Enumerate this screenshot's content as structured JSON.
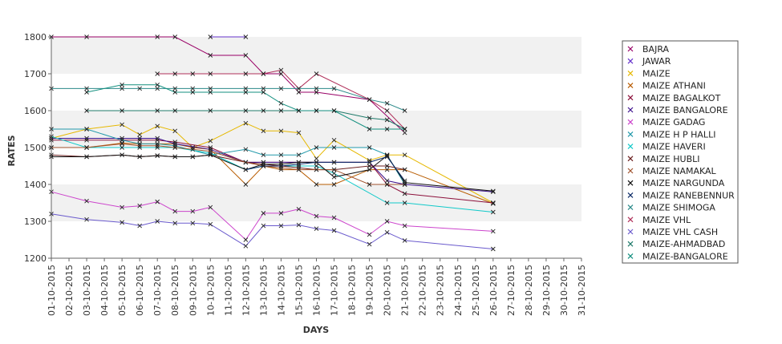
{
  "chart_data": {
    "type": "line",
    "title": "",
    "xlabel": "DAYS",
    "ylabel": "RATES",
    "ylim": [
      1200,
      1800
    ],
    "yticks": [
      1200,
      1300,
      1400,
      1500,
      1600,
      1700,
      1800
    ],
    "grid": "alternating horizontal bands",
    "legend_position": "right",
    "x": [
      "01-10-2015",
      "02-10-2015",
      "03-10-2015",
      "04-10-2015",
      "05-10-2015",
      "06-10-2015",
      "07-10-2015",
      "08-10-2015",
      "09-10-2015",
      "10-10-2015",
      "11-10-2015",
      "12-10-2015",
      "13-10-2015",
      "14-10-2015",
      "15-10-2015",
      "16-10-2015",
      "17-10-2015",
      "18-10-2015",
      "19-10-2015",
      "20-10-2015",
      "21-10-2015",
      "22-10-2015",
      "23-10-2015",
      "24-10-2015",
      "25-10-2015",
      "26-10-2015",
      "27-10-2015",
      "28-10-2015",
      "29-10-2015",
      "30-10-2015",
      "31-10-2015"
    ],
    "series": [
      {
        "name": "BAJRA",
        "color": "#990066",
        "points": [
          [
            1,
            1800
          ],
          [
            3,
            1800
          ],
          [
            7,
            1800
          ],
          [
            8,
            1800
          ],
          [
            10,
            1750
          ],
          [
            12,
            1750
          ],
          [
            13,
            1700
          ],
          [
            14,
            1700
          ],
          [
            15,
            1650
          ],
          [
            16,
            1650
          ],
          [
            19,
            1630
          ],
          [
            21,
            1540
          ]
        ]
      },
      {
        "name": "JAWAR",
        "color": "#6633cc",
        "points": [
          [
            10,
            1800
          ],
          [
            12,
            1800
          ]
        ]
      },
      {
        "name": "MAIZE",
        "color": "#e6b800",
        "points": [
          [
            1,
            1525
          ],
          [
            3,
            1550
          ],
          [
            5,
            1562
          ],
          [
            6,
            1535
          ],
          [
            7,
            1558
          ],
          [
            8,
            1545
          ],
          [
            9,
            1500
          ],
          [
            10,
            1518
          ],
          [
            12,
            1566
          ],
          [
            13,
            1545
          ],
          [
            14,
            1545
          ],
          [
            15,
            1540
          ],
          [
            16,
            1470
          ],
          [
            17,
            1520
          ],
          [
            19,
            1465
          ],
          [
            20,
            1480
          ],
          [
            21,
            1480
          ],
          [
            26,
            1350
          ]
        ]
      },
      {
        "name": "MAIZE ATHANI",
        "color": "#b85c00",
        "points": [
          [
            1,
            1500
          ],
          [
            3,
            1500
          ],
          [
            5,
            1512
          ],
          [
            6,
            1510
          ],
          [
            7,
            1510
          ],
          [
            8,
            1510
          ],
          [
            9,
            1500
          ],
          [
            10,
            1495
          ],
          [
            12,
            1400
          ],
          [
            13,
            1450
          ],
          [
            14,
            1440
          ],
          [
            15,
            1440
          ],
          [
            16,
            1400
          ],
          [
            17,
            1400
          ],
          [
            19,
            1440
          ],
          [
            20,
            1440
          ],
          [
            21,
            1440
          ],
          [
            26,
            1348
          ]
        ]
      },
      {
        "name": "MAIZE BAGALKOT",
        "color": "#8c0f3a",
        "points": [
          [
            1,
            1520
          ],
          [
            3,
            1520
          ],
          [
            5,
            1520
          ],
          [
            6,
            1520
          ],
          [
            7,
            1520
          ],
          [
            8,
            1515
          ],
          [
            10,
            1500
          ],
          [
            12,
            1460
          ],
          [
            13,
            1460
          ],
          [
            14,
            1460
          ],
          [
            15,
            1460
          ],
          [
            16,
            1460
          ],
          [
            17,
            1460
          ],
          [
            19,
            1460
          ],
          [
            20,
            1400
          ],
          [
            21,
            1375
          ],
          [
            26,
            1350
          ]
        ]
      },
      {
        "name": "MAIZE BANGALORE",
        "color": "#3b0f8c",
        "points": [
          [
            1,
            1525
          ],
          [
            3,
            1525
          ],
          [
            5,
            1525
          ],
          [
            6,
            1525
          ],
          [
            7,
            1525
          ],
          [
            8,
            1510
          ],
          [
            10,
            1495
          ],
          [
            12,
            1460
          ],
          [
            13,
            1460
          ],
          [
            14,
            1460
          ],
          [
            15,
            1460
          ],
          [
            16,
            1460
          ],
          [
            17,
            1460
          ],
          [
            19,
            1460
          ],
          [
            20,
            1410
          ],
          [
            21,
            1400
          ],
          [
            26,
            1380
          ]
        ]
      },
      {
        "name": "MAIZE GADAG",
        "color": "#cc44cc",
        "points": [
          [
            1,
            1380
          ],
          [
            3,
            1355
          ],
          [
            5,
            1338
          ],
          [
            6,
            1342
          ],
          [
            7,
            1353
          ],
          [
            8,
            1327
          ],
          [
            9,
            1327
          ],
          [
            10,
            1338
          ],
          [
            12,
            1250
          ],
          [
            13,
            1322
          ],
          [
            14,
            1322
          ],
          [
            15,
            1333
          ],
          [
            16,
            1314
          ],
          [
            17,
            1310
          ],
          [
            19,
            1264
          ],
          [
            20,
            1300
          ],
          [
            21,
            1288
          ],
          [
            26,
            1273
          ]
        ]
      },
      {
        "name": "MAIZE H P HALLI",
        "color": "#2299aa",
        "points": [
          [
            1,
            1550
          ],
          [
            3,
            1550
          ],
          [
            5,
            1520
          ],
          [
            6,
            1510
          ],
          [
            7,
            1510
          ],
          [
            8,
            1505
          ],
          [
            10,
            1480
          ],
          [
            12,
            1495
          ],
          [
            13,
            1480
          ],
          [
            14,
            1480
          ],
          [
            15,
            1480
          ],
          [
            16,
            1500
          ],
          [
            17,
            1500
          ],
          [
            19,
            1500
          ],
          [
            20,
            1480
          ],
          [
            21,
            1400
          ]
        ]
      },
      {
        "name": "MAIZE HAVERI",
        "color": "#11c9c9",
        "points": [
          [
            1,
            1530
          ],
          [
            3,
            1500
          ],
          [
            5,
            1500
          ],
          [
            6,
            1500
          ],
          [
            7,
            1500
          ],
          [
            8,
            1500
          ],
          [
            10,
            1485
          ],
          [
            12,
            1440
          ],
          [
            13,
            1450
          ],
          [
            14,
            1450
          ],
          [
            15,
            1450
          ],
          [
            16,
            1450
          ],
          [
            17,
            1430
          ],
          [
            20,
            1350
          ],
          [
            21,
            1350
          ],
          [
            26,
            1325
          ]
        ]
      },
      {
        "name": "MAIZE HUBLI",
        "color": "#6b1f1f",
        "points": [
          [
            1,
            1480
          ],
          [
            3,
            1475
          ],
          [
            5,
            1480
          ],
          [
            6,
            1475
          ],
          [
            7,
            1478
          ],
          [
            8,
            1475
          ],
          [
            9,
            1475
          ],
          [
            10,
            1480
          ],
          [
            12,
            1460
          ],
          [
            13,
            1455
          ],
          [
            14,
            1450
          ],
          [
            15,
            1445
          ],
          [
            16,
            1440
          ],
          [
            17,
            1440
          ],
          [
            19,
            1450
          ],
          [
            20,
            1450
          ],
          [
            21,
            1440
          ]
        ]
      },
      {
        "name": "MAIZE NAMAKAL",
        "color": "#a0522d",
        "points": [
          [
            1,
            1500
          ],
          [
            3,
            1500
          ],
          [
            5,
            1510
          ],
          [
            6,
            1505
          ],
          [
            7,
            1505
          ],
          [
            8,
            1500
          ],
          [
            9,
            1495
          ],
          [
            10,
            1490
          ],
          [
            12,
            1460
          ],
          [
            13,
            1450
          ],
          [
            14,
            1445
          ],
          [
            15,
            1440
          ],
          [
            16,
            1440
          ],
          [
            17,
            1440
          ],
          [
            19,
            1400
          ],
          [
            20,
            1400
          ],
          [
            21,
            1400
          ]
        ]
      },
      {
        "name": "MAIZE NARGUNDA",
        "color": "#111111",
        "points": [
          [
            1,
            1475
          ],
          [
            3,
            1475
          ],
          [
            5,
            1480
          ],
          [
            6,
            1475
          ],
          [
            7,
            1478
          ],
          [
            8,
            1475
          ],
          [
            9,
            1475
          ],
          [
            10,
            1480
          ],
          [
            12,
            1440
          ],
          [
            13,
            1455
          ],
          [
            14,
            1455
          ],
          [
            15,
            1460
          ],
          [
            16,
            1460
          ],
          [
            17,
            1420
          ],
          [
            19,
            1440
          ],
          [
            20,
            1478
          ],
          [
            21,
            1405
          ],
          [
            26,
            1382
          ]
        ]
      },
      {
        "name": "MAIZE RANEBENNUR",
        "color": "#0b2a66",
        "points": [
          [
            12,
            1440
          ],
          [
            13,
            1450
          ],
          [
            14,
            1450
          ],
          [
            15,
            1455
          ],
          [
            16,
            1460
          ],
          [
            17,
            1460
          ],
          [
            19,
            1460
          ],
          [
            20,
            1475
          ],
          [
            21,
            1410
          ]
        ]
      },
      {
        "name": "MAIZE SHIMOGA",
        "color": "#2b8a8a",
        "points": [
          [
            1,
            1660
          ],
          [
            3,
            1660
          ],
          [
            5,
            1660
          ],
          [
            6,
            1660
          ],
          [
            7,
            1660
          ],
          [
            8,
            1660
          ],
          [
            9,
            1660
          ],
          [
            10,
            1660
          ],
          [
            12,
            1660
          ],
          [
            13,
            1660
          ],
          [
            14,
            1660
          ],
          [
            15,
            1660
          ],
          [
            16,
            1660
          ],
          [
            17,
            1660
          ],
          [
            19,
            1630
          ],
          [
            20,
            1620
          ],
          [
            21,
            1600
          ]
        ]
      },
      {
        "name": "MAIZE VHL",
        "color": "#b0305a",
        "points": [
          [
            7,
            1700
          ],
          [
            8,
            1700
          ],
          [
            9,
            1700
          ],
          [
            10,
            1700
          ],
          [
            12,
            1700
          ],
          [
            13,
            1700
          ],
          [
            14,
            1710
          ],
          [
            15,
            1660
          ],
          [
            16,
            1700
          ],
          [
            19,
            1630
          ],
          [
            20,
            1600
          ],
          [
            21,
            1550
          ]
        ]
      },
      {
        "name": "MAIZE VHL CASH",
        "color": "#6a5acd",
        "points": [
          [
            1,
            1320
          ],
          [
            3,
            1305
          ],
          [
            5,
            1297
          ],
          [
            6,
            1288
          ],
          [
            7,
            1300
          ],
          [
            8,
            1295
          ],
          [
            9,
            1295
          ],
          [
            10,
            1292
          ],
          [
            12,
            1233
          ],
          [
            13,
            1288
          ],
          [
            14,
            1288
          ],
          [
            15,
            1290
          ],
          [
            16,
            1280
          ],
          [
            17,
            1275
          ],
          [
            19,
            1238
          ],
          [
            20,
            1270
          ],
          [
            21,
            1248
          ],
          [
            26,
            1225
          ]
        ]
      },
      {
        "name": "MAIZE-AHMADBAD",
        "color": "#1f7a6a",
        "points": [
          [
            3,
            1600
          ],
          [
            5,
            1600
          ],
          [
            7,
            1600
          ],
          [
            8,
            1600
          ],
          [
            10,
            1600
          ],
          [
            12,
            1600
          ],
          [
            13,
            1600
          ],
          [
            14,
            1600
          ],
          [
            15,
            1600
          ],
          [
            16,
            1600
          ],
          [
            17,
            1600
          ],
          [
            19,
            1580
          ],
          [
            20,
            1575
          ],
          [
            21,
            1550
          ]
        ]
      },
      {
        "name": "MAIZE-BANGALORE",
        "color": "#138f7f",
        "points": [
          [
            3,
            1650
          ],
          [
            5,
            1670
          ],
          [
            7,
            1670
          ],
          [
            8,
            1650
          ],
          [
            9,
            1650
          ],
          [
            10,
            1650
          ],
          [
            12,
            1650
          ],
          [
            13,
            1650
          ],
          [
            14,
            1620
          ],
          [
            15,
            1600
          ],
          [
            16,
            1600
          ],
          [
            17,
            1600
          ],
          [
            19,
            1550
          ],
          [
            20,
            1550
          ],
          [
            21,
            1550
          ]
        ]
      }
    ]
  }
}
